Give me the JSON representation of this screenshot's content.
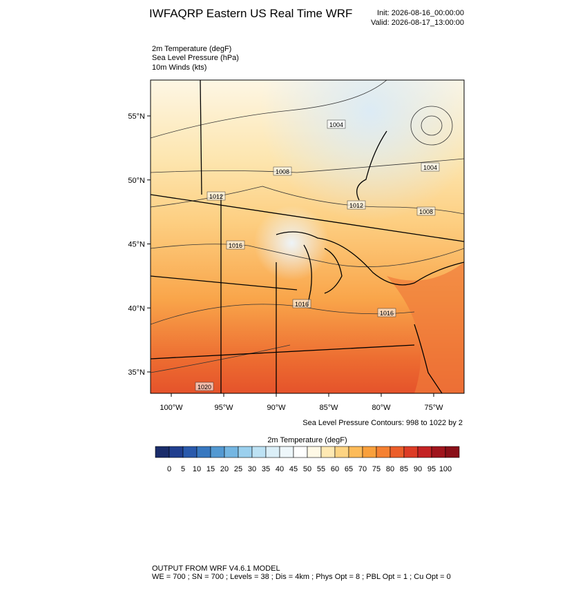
{
  "header": {
    "title": "IWFAQRP Eastern US Real Time WRF",
    "init": "Init: 2026-08-16_00:00:00",
    "valid": "Valid: 2026-08-17_13:00:00"
  },
  "fields": [
    "2m Temperature   (degF)",
    "Sea Level Pressure   (hPa)",
    "10m Winds   (kts)"
  ],
  "map": {
    "lat_ticks": [
      {
        "value": 55,
        "label": "55°N"
      },
      {
        "value": 50,
        "label": "50°N"
      },
      {
        "value": 45,
        "label": "45°N"
      },
      {
        "value": 40,
        "label": "40°N"
      },
      {
        "value": 35,
        "label": "35°N"
      }
    ],
    "lon_ticks": [
      {
        "value": -100,
        "label": "100°W"
      },
      {
        "value": -95,
        "label": "95°W"
      },
      {
        "value": -90,
        "label": "90°W"
      },
      {
        "value": -85,
        "label": "85°W"
      },
      {
        "value": -80,
        "label": "80°W"
      },
      {
        "value": -75,
        "label": "75°W"
      }
    ],
    "contour_labels": [
      1004,
      1004,
      1008,
      1008,
      1012,
      1012,
      1016,
      1016,
      1016,
      1020
    ],
    "contour_note": "Sea Level Pressure Contours: 998 to 1022 by 2"
  },
  "colorbar": {
    "title": "2m Temperature  (degF)",
    "levels": [
      0,
      5,
      10,
      15,
      20,
      25,
      30,
      35,
      40,
      45,
      50,
      55,
      60,
      65,
      70,
      75,
      80,
      85,
      90,
      95,
      100
    ],
    "colors": [
      "#1b2d6b",
      "#213f8f",
      "#2a5aac",
      "#3878c0",
      "#5399d2",
      "#74b6e2",
      "#9bd0ee",
      "#bde2f4",
      "#dbeff8",
      "#eef7fb",
      "#ffffff",
      "#fff9e6",
      "#ffe9b3",
      "#fdd483",
      "#fdbb59",
      "#f9a03c",
      "#f58132",
      "#ec5e2a",
      "#dd3c26",
      "#c42324",
      "#a0151d",
      "#8a1019"
    ]
  },
  "footer": {
    "line1": "OUTPUT FROM WRF V4.6.1 MODEL",
    "line2": "WE = 700 ; SN = 700 ; Levels = 38 ; Dis = 4km ; Phys Opt = 8 ; PBL Opt = 1 ; Cu Opt = 0"
  }
}
